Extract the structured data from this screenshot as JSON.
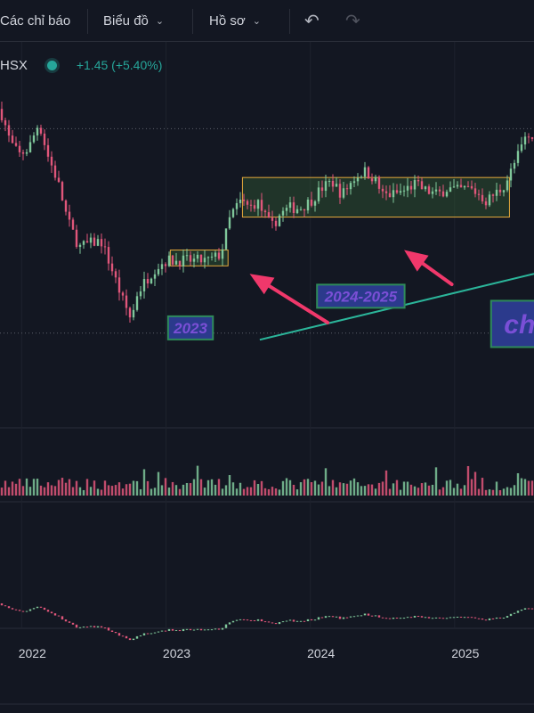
{
  "toolbar": {
    "indicators_label": "Các chỉ báo",
    "chart_label": "Biểu đồ",
    "profile_label": "Hồ sơ",
    "undo_icon": "undo-icon",
    "redo_icon": "redo-icon"
  },
  "symbol": {
    "exchange_fragment": "HSX",
    "change_text": "+1.45 (+5.40%)",
    "status_color": "#26a69a"
  },
  "colors": {
    "background": "#131722",
    "up": "#7fc79a",
    "down": "#e0567a",
    "box_border": "#e5a93b",
    "box_fill": "rgba(70,130,60,0.28)",
    "trendline": "#2bb59a",
    "arrow": "#f0386b",
    "label_text": "#7a4fd6",
    "label_border": "#2e8a5a",
    "label_bg": "#2b3a8c"
  },
  "chart_data": {
    "type": "candlestick",
    "x_ticks": [
      "2022",
      "2023",
      "2024",
      "2025"
    ],
    "x_tick_positions_years": [
      2022.0,
      2023.0,
      2024.0,
      2025.0
    ],
    "x_range": [
      2021.85,
      2025.55
    ],
    "y_range": [
      15.0,
      40.0
    ],
    "reference_levels": [
      37.0,
      21.5
    ],
    "price_path": [
      [
        2021.85,
        38.5
      ],
      [
        2021.88,
        37.5
      ],
      [
        2021.92,
        36.0
      ],
      [
        2021.98,
        35.0
      ],
      [
        2022.05,
        35.5
      ],
      [
        2022.12,
        37.5
      ],
      [
        2022.18,
        35.0
      ],
      [
        2022.25,
        33.0
      ],
      [
        2022.32,
        30.0
      ],
      [
        2022.4,
        28.0
      ],
      [
        2022.47,
        28.3
      ],
      [
        2022.55,
        28.5
      ],
      [
        2022.62,
        26.5
      ],
      [
        2022.7,
        24.0
      ],
      [
        2022.76,
        22.5
      ],
      [
        2022.8,
        24.5
      ],
      [
        2022.86,
        25.5
      ],
      [
        2022.93,
        26.5
      ],
      [
        2023.0,
        27.0
      ],
      [
        2023.08,
        27.0
      ],
      [
        2023.15,
        27.0
      ],
      [
        2023.22,
        27.0
      ],
      [
        2023.3,
        27.0
      ],
      [
        2023.38,
        27.5
      ],
      [
        2023.45,
        30.5
      ],
      [
        2023.52,
        31.5
      ],
      [
        2023.58,
        31.0
      ],
      [
        2023.63,
        31.5
      ],
      [
        2023.68,
        30.5
      ],
      [
        2023.73,
        29.5
      ],
      [
        2023.79,
        30.5
      ],
      [
        2023.86,
        31.0
      ],
      [
        2023.93,
        31.0
      ],
      [
        2024.0,
        31.5
      ],
      [
        2024.08,
        32.5
      ],
      [
        2024.15,
        33.0
      ],
      [
        2024.22,
        32.0
      ],
      [
        2024.3,
        33.2
      ],
      [
        2024.37,
        33.8
      ],
      [
        2024.44,
        33.3
      ],
      [
        2024.5,
        32.0
      ],
      [
        2024.57,
        32.0
      ],
      [
        2024.65,
        32.3
      ],
      [
        2024.72,
        32.8
      ],
      [
        2024.8,
        32.3
      ],
      [
        2024.88,
        32.0
      ],
      [
        2024.95,
        32.5
      ],
      [
        2025.02,
        32.3
      ],
      [
        2025.1,
        32.5
      ],
      [
        2025.17,
        32.0
      ],
      [
        2025.22,
        31.5
      ],
      [
        2025.27,
        32.0
      ],
      [
        2025.33,
        32.5
      ],
      [
        2025.38,
        33.5
      ],
      [
        2025.44,
        35.0
      ],
      [
        2025.5,
        36.5
      ],
      [
        2025.55,
        36.0
      ]
    ],
    "consolidation_zones": [
      {
        "x_start": 2023.03,
        "x_end": 2023.43,
        "y_low": 26.6,
        "y_high": 27.8
      },
      {
        "x_start": 2023.53,
        "x_end": 2025.38,
        "y_low": 30.3,
        "y_high": 33.3
      }
    ],
    "annotations": [
      {
        "text": "2023",
        "x": 2023.17,
        "y": 21.9
      },
      {
        "text": "2024-2025",
        "x": 2024.35,
        "y": 24.3
      },
      {
        "text": "ch",
        "x": 2025.45,
        "y": 22.2
      }
    ],
    "trendline": {
      "x_start": 2023.65,
      "y_start": 21.0,
      "x_end": 2025.55,
      "y_end": 26.0
    },
    "arrows": [
      {
        "x_from": 2024.12,
        "y_from": 22.3,
        "x_to": 2023.58,
        "y_to": 26.0
      },
      {
        "x_from": 2024.98,
        "y_from": 25.2,
        "x_to": 2024.65,
        "y_to": 27.8
      }
    ],
    "volume_panel": {
      "y_range": [
        0,
        1
      ],
      "baseline_level": 0.1
    },
    "oscillator_panel": {
      "y_range": [
        0,
        1
      ]
    }
  }
}
